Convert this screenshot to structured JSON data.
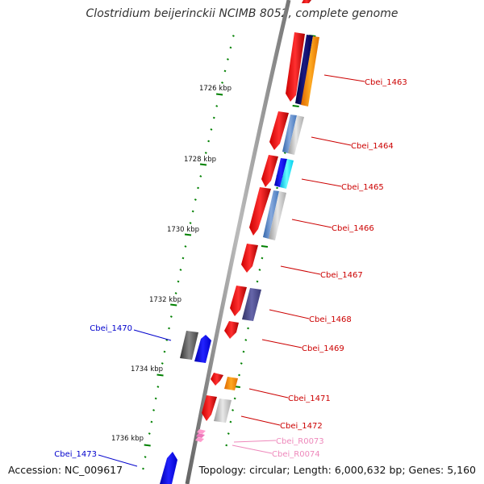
{
  "title": "Clostridium beijerinckii NCIMB 8052, complete genome",
  "footer": {
    "accession": "Accession: NC_009617",
    "summary": "Topology: circular; Length: 6,000,632 bp; Genes: 5,160"
  },
  "colors": {
    "backbone": "#888888",
    "tick": "#008000",
    "gene_label": "#cc0000",
    "gene_label_blue": "#0000cc",
    "rna_label": "#ee88bb"
  },
  "kbp_labels": [
    "1726 kbp",
    "1728 kbp",
    "1730 kbp",
    "1732 kbp",
    "1734 kbp",
    "1736 kbp"
  ],
  "gene_labels": [
    {
      "id": "Cbei_1463",
      "color": "red"
    },
    {
      "id": "Cbei_1464",
      "color": "red"
    },
    {
      "id": "Cbei_1465",
      "color": "red"
    },
    {
      "id": "Cbei_1466",
      "color": "red"
    },
    {
      "id": "Cbei_1467",
      "color": "red"
    },
    {
      "id": "Cbei_1468",
      "color": "red"
    },
    {
      "id": "Cbei_1469",
      "color": "red"
    },
    {
      "id": "Cbei_1470",
      "color": "blue"
    },
    {
      "id": "Cbei_1471",
      "color": "red"
    },
    {
      "id": "Cbei_1472",
      "color": "red"
    },
    {
      "id": "Cbei_R0073",
      "color": "pink"
    },
    {
      "id": "Cbei_R0074",
      "color": "pink"
    },
    {
      "id": "Cbei_1473",
      "color": "blue"
    }
  ]
}
